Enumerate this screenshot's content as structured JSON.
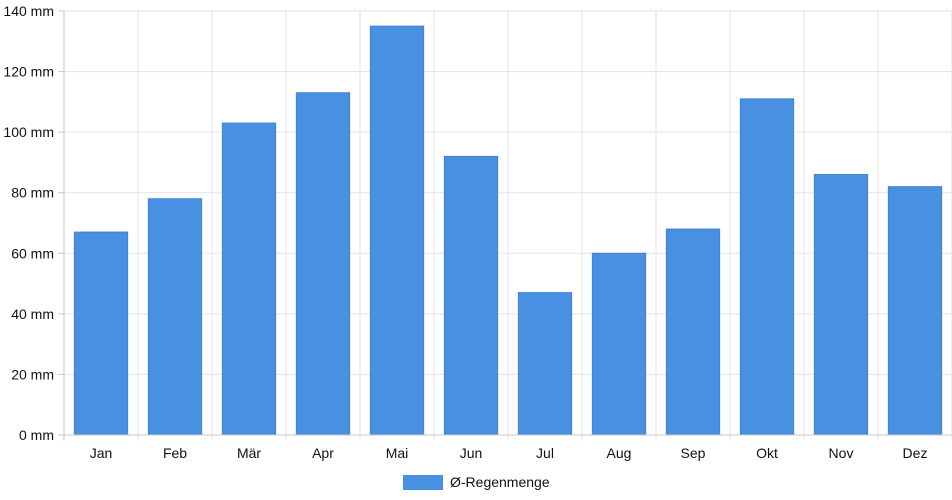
{
  "chart_data": {
    "type": "bar",
    "categories": [
      "Jan",
      "Feb",
      "Mär",
      "Apr",
      "Mai",
      "Jun",
      "Jul",
      "Aug",
      "Sep",
      "Okt",
      "Nov",
      "Dez"
    ],
    "series": [
      {
        "name": "Ø-Regenmenge",
        "color": "#4a90e2",
        "values": [
          67,
          78,
          103,
          113,
          135,
          92,
          47,
          60,
          68,
          111,
          86,
          82
        ]
      }
    ],
    "y_ticks": [
      "0 mm",
      "20 mm",
      "40 mm",
      "60 mm",
      "80 mm",
      "100 mm",
      "120 mm",
      "140 mm"
    ],
    "ylim": [
      0,
      140
    ],
    "ytick_step": 20,
    "grid": true,
    "legend_position": "bottom-center",
    "title": "",
    "xlabel": "",
    "ylabel": ""
  }
}
